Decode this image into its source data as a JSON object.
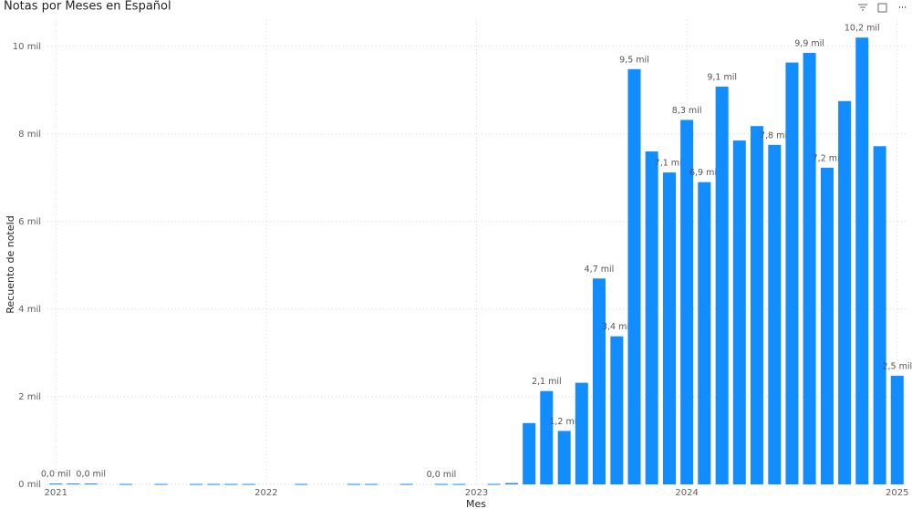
{
  "chart_data": {
    "type": "bar",
    "title": "Notas por Meses en Español",
    "x_label": "Mes",
    "y_label": "Recuento de noteId",
    "x": [
      2021,
      2021.083,
      2021.167,
      2021.333,
      2021.5,
      2021.667,
      2021.75,
      2021.833,
      2021.917,
      2022.167,
      2022.417,
      2022.5,
      2022.667,
      2022.833,
      2022.917,
      2023.083,
      2023.167,
      2023.25,
      2023.333,
      2023.417,
      2023.5,
      2023.583,
      2023.667,
      2023.75,
      2023.833,
      2023.917,
      2024,
      2024.083,
      2024.167,
      2024.25,
      2024.333,
      2024.417,
      2024.5,
      2024.583,
      2024.667,
      2024.75,
      2024.833,
      2024.917,
      2025
    ],
    "values": [
      0.02,
      0.02,
      0.02,
      0.01,
      0.01,
      0.01,
      0.01,
      0.01,
      0.01,
      0.01,
      0.01,
      0.01,
      0.01,
      0.01,
      0.01,
      0.01,
      0.03,
      1.4,
      2.13,
      1.22,
      2.32,
      4.7,
      3.38,
      9.48,
      7.6,
      7.12,
      8.32,
      6.9,
      9.08,
      7.85,
      8.18,
      7.75,
      9.63,
      9.85,
      7.23,
      8.75,
      10.2,
      7.72,
      2.48
    ],
    "value_labels": [
      "0,0 mil",
      null,
      "0,0 mil",
      null,
      null,
      null,
      null,
      null,
      null,
      null,
      null,
      null,
      null,
      "0,0 mil",
      null,
      null,
      null,
      null,
      "2,1 mil",
      "1,2 mil",
      null,
      "4,7 mil",
      "3,4 mil",
      "9,5 mil",
      null,
      "7,1 mil",
      "8,3 mil",
      "6,9 mil",
      "9,1 mil",
      null,
      null,
      "7,8 mil",
      null,
      "9,9 mil",
      "7,2 mil",
      null,
      "10,2 mil",
      null,
      "2,5 mil"
    ],
    "color": "#118dff",
    "xlim": [
      2020.96,
      2025.04
    ],
    "xticks": [
      2021,
      2022,
      2023,
      2024,
      2025
    ],
    "ylim": [
      0,
      10.6
    ],
    "yticks": [
      {
        "value": 0,
        "label": "0 mil"
      },
      {
        "value": 2,
        "label": "2 mil"
      },
      {
        "value": 4,
        "label": "4 mil"
      },
      {
        "value": 6,
        "label": "6 mil"
      },
      {
        "value": 8,
        "label": "8 mil"
      },
      {
        "value": 10,
        "label": "10 mil"
      }
    ],
    "grid": true
  }
}
